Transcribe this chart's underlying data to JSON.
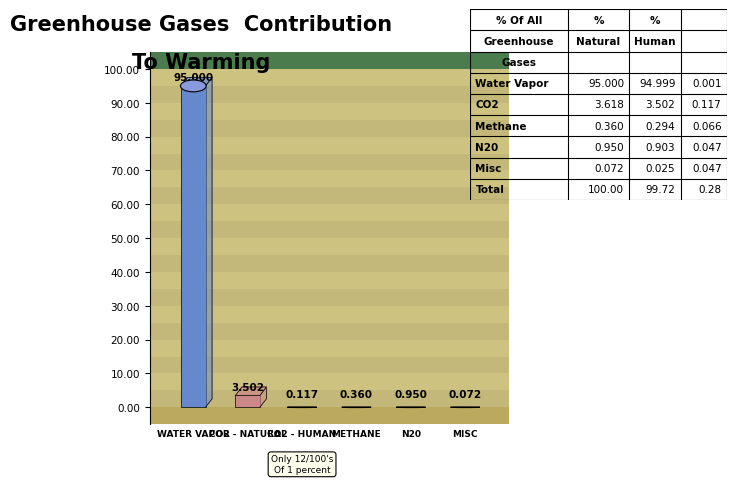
{
  "title_line1": "Greenhouse Gases  Contribution",
  "title_line2": "To Warming",
  "title_fontsize": 18,
  "title_color": "#000000",
  "background_top": "#ffffff",
  "background_bottom_left": "#4a7c4e",
  "chart_floor_color": "#d4b84a",
  "bar_categories": [
    "WATER VAPOR",
    "CO2 - NATURAL",
    "CO2 - HUMAN",
    "METHANE",
    "N20",
    "MISC"
  ],
  "bar_values": [
    95.0,
    3.502,
    0.117,
    0.36,
    0.95,
    0.072
  ],
  "bar_colors": [
    "#6688cc",
    "#cc8888",
    "#cc2222",
    "#cccc22",
    "#226622",
    "#996633"
  ],
  "bar_labels": [
    "95.000",
    "3.502",
    "0.117",
    "0.360",
    "0.950",
    "0.072"
  ],
  "yticks": [
    0.0,
    10.0,
    20.0,
    30.0,
    40.0,
    50.0,
    60.0,
    70.0,
    80.0,
    90.0,
    100.0
  ],
  "ytick_labels": [
    "0.00",
    "10.00",
    "20.00",
    "30.00",
    "40.00",
    "50.00",
    "60.00",
    "70.00",
    "80.00",
    "90.00",
    "100.00"
  ],
  "note_text": "Only 12/100's\nOf 1 percent",
  "table_header_row1": [
    "% Of All",
    "%",
    "%"
  ],
  "table_header_row2": [
    "Greenhouse",
    "Natural",
    "Human"
  ],
  "table_header_row3": [
    "Gases",
    "",
    ""
  ],
  "table_rows": [
    [
      "Water Vapor",
      "95.000",
      "94.999",
      "0.001"
    ],
    [
      "CO2",
      "3.618",
      "3.502",
      "0.117"
    ],
    [
      "Methane",
      "0.360",
      "0.294",
      "0.066"
    ],
    [
      "N20",
      "0.950",
      "0.903",
      "0.047"
    ],
    [
      "Misc",
      "0.072",
      "0.025",
      "0.047"
    ]
  ],
  "table_total": [
    "Total",
    "100.00",
    "99.72",
    "0.28"
  ],
  "floor_color": "#d4b96a",
  "wall_color": "#e8cc88",
  "left_wall_color": "#c8b870"
}
